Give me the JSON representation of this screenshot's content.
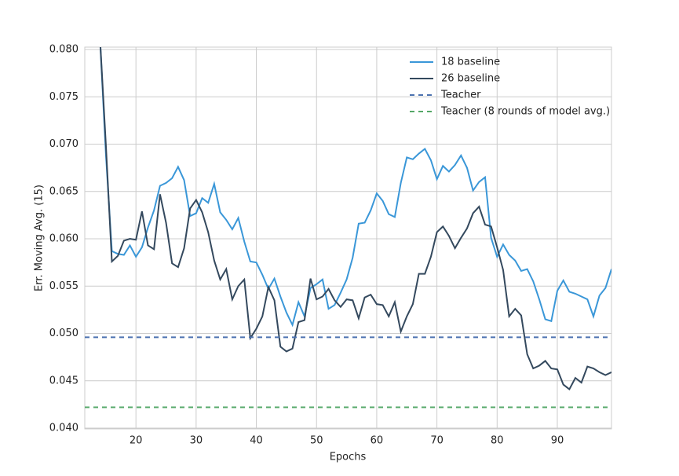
{
  "chart_data": {
    "type": "line",
    "xlabel": "Epochs",
    "ylabel": "Err. Moving Avg. (15)",
    "xlim": [
      11.5,
      99
    ],
    "ylim": [
      0.04,
      0.08
    ],
    "xticks": [
      20,
      30,
      40,
      50,
      60,
      70,
      80,
      90
    ],
    "yticks": [
      {
        "value": 0.04,
        "label": "0.040"
      },
      {
        "value": 0.045,
        "label": "0.045"
      },
      {
        "value": 0.05,
        "label": "0.050"
      },
      {
        "value": 0.055,
        "label": "0.055"
      },
      {
        "value": 0.06,
        "label": "0.060"
      },
      {
        "value": 0.065,
        "label": "0.065"
      },
      {
        "value": 0.07,
        "label": "0.070"
      },
      {
        "value": 0.075,
        "label": "0.075"
      },
      {
        "value": 0.08,
        "label": "0.080"
      }
    ],
    "grid": true,
    "legend": "upper right",
    "x": [
      14,
      15,
      16,
      17,
      18,
      19,
      20,
      21,
      22,
      23,
      24,
      25,
      26,
      27,
      28,
      29,
      30,
      31,
      32,
      33,
      34,
      35,
      36,
      37,
      38,
      39,
      40,
      41,
      42,
      43,
      44,
      45,
      46,
      47,
      48,
      49,
      50,
      51,
      52,
      53,
      54,
      55,
      56,
      57,
      58,
      59,
      60,
      61,
      62,
      63,
      64,
      65,
      66,
      67,
      68,
      69,
      70,
      71,
      72,
      73,
      74,
      75,
      76,
      77,
      78,
      79,
      80,
      81,
      82,
      83,
      84,
      85,
      86,
      87,
      88,
      89,
      90,
      91,
      92,
      93,
      94,
      95,
      96,
      97,
      98,
      99
    ],
    "series": [
      {
        "name": "18 baseline",
        "color": "#3a97d8",
        "values": [
          0.0815,
          0.069,
          0.0587,
          0.0584,
          0.0583,
          0.0593,
          0.0581,
          0.0591,
          0.0612,
          0.063,
          0.0656,
          0.0659,
          0.0664,
          0.0676,
          0.0662,
          0.0624,
          0.0627,
          0.0643,
          0.0638,
          0.0658,
          0.0628,
          0.062,
          0.061,
          0.0622,
          0.0597,
          0.0576,
          0.0575,
          0.0562,
          0.0547,
          0.0558,
          0.0539,
          0.0522,
          0.0509,
          0.0533,
          0.0518,
          0.0548,
          0.0552,
          0.0557,
          0.0526,
          0.053,
          0.0543,
          0.0557,
          0.058,
          0.0616,
          0.0617,
          0.063,
          0.0648,
          0.064,
          0.0626,
          0.0623,
          0.0659,
          0.0686,
          0.0684,
          0.069,
          0.0695,
          0.0683,
          0.0663,
          0.0677,
          0.0671,
          0.0678,
          0.0688,
          0.0675,
          0.0651,
          0.066,
          0.0665,
          0.0601,
          0.0581,
          0.0594,
          0.0583,
          0.0577,
          0.0566,
          0.0568,
          0.0555,
          0.0536,
          0.0515,
          0.0513,
          0.0545,
          0.0556,
          0.0544,
          0.0542,
          0.0539,
          0.0536,
          0.0518,
          0.054,
          0.0548,
          0.0568
        ]
      },
      {
        "name": "26 baseline",
        "color": "#34495e",
        "values": [
          0.0815,
          0.07,
          0.0576,
          0.0582,
          0.0598,
          0.06,
          0.0599,
          0.0629,
          0.0593,
          0.0589,
          0.0647,
          0.0617,
          0.0574,
          0.057,
          0.059,
          0.0632,
          0.0641,
          0.0628,
          0.0607,
          0.0577,
          0.0557,
          0.0568,
          0.0536,
          0.055,
          0.0557,
          0.0495,
          0.0505,
          0.0518,
          0.0549,
          0.0535,
          0.0486,
          0.0481,
          0.0484,
          0.0512,
          0.0514,
          0.0558,
          0.0536,
          0.0539,
          0.0547,
          0.0535,
          0.0528,
          0.0536,
          0.0535,
          0.0516,
          0.0538,
          0.0541,
          0.0531,
          0.053,
          0.0518,
          0.0533,
          0.0502,
          0.0518,
          0.0531,
          0.0563,
          0.0563,
          0.0581,
          0.0607,
          0.0613,
          0.0603,
          0.059,
          0.0601,
          0.0611,
          0.0627,
          0.0634,
          0.0615,
          0.0613,
          0.0591,
          0.0567,
          0.0518,
          0.0526,
          0.0519,
          0.0478,
          0.0463,
          0.0466,
          0.0471,
          0.0463,
          0.0462,
          0.0446,
          0.0441,
          0.0453,
          0.0448,
          0.0465,
          0.0463,
          0.0459,
          0.0456,
          0.0459
        ]
      }
    ],
    "reference_lines": [
      {
        "name": "Teacher",
        "color": "#4c72b0",
        "value": 0.0496
      },
      {
        "name": "Teacher (8 rounds of model avg.)",
        "color": "#55a868",
        "value": 0.0422
      }
    ]
  }
}
